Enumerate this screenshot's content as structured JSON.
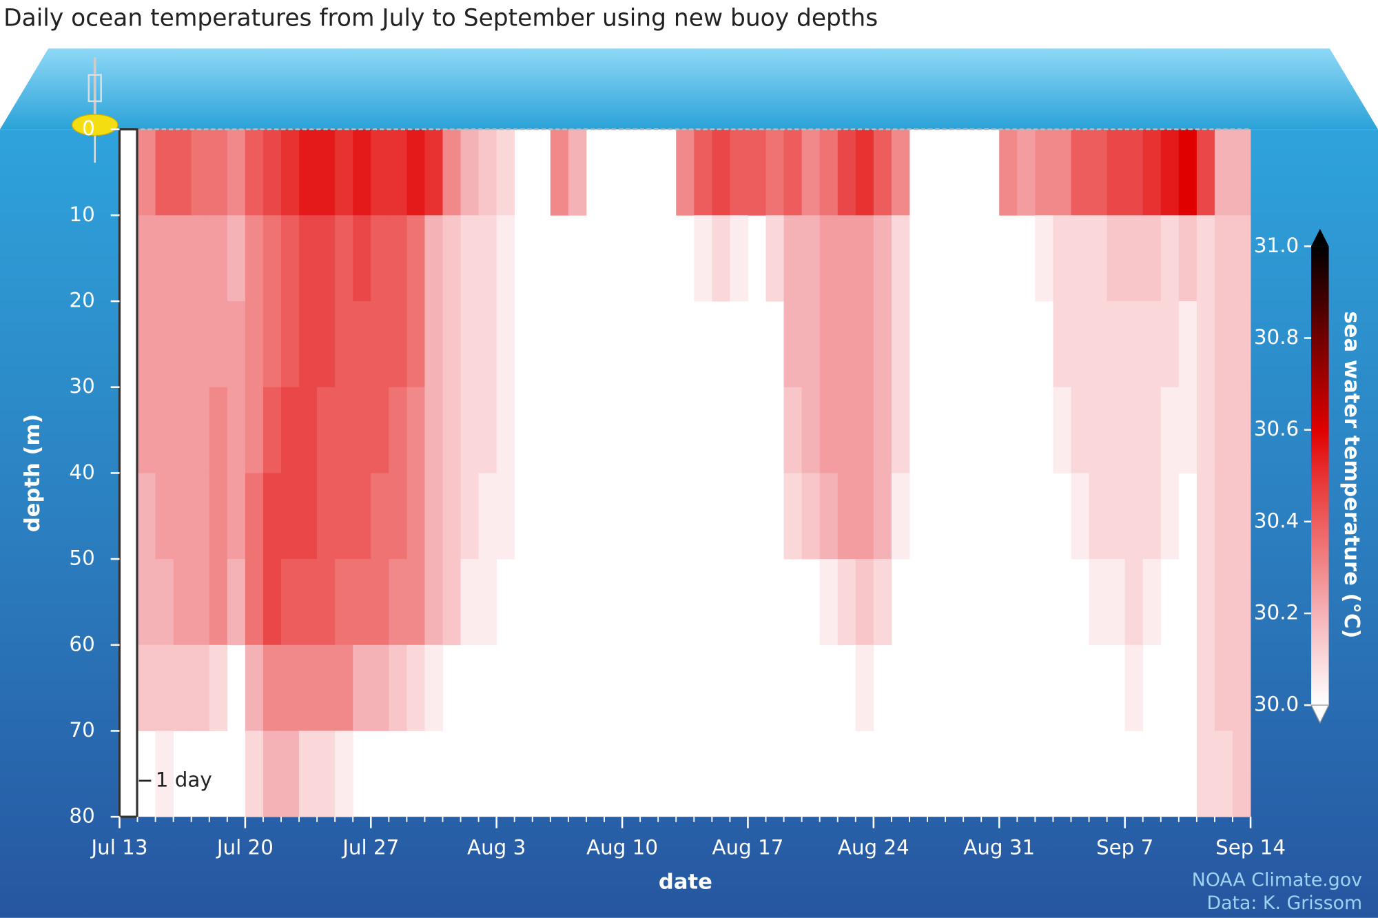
{
  "chart_data": {
    "type": "heatmap",
    "title": "Daily ocean temperatures from July to September using new buoy depths",
    "x_label": "date",
    "y_label": "depth (m)",
    "colorbar_label": "sea water temperature (°C)",
    "annotation": "1 day",
    "credits": [
      "NOAA Climate.gov",
      "Data: K. Grissom"
    ],
    "xlim": [
      0,
      63
    ],
    "xticks": [
      {
        "value": 0,
        "label": "Jul 13"
      },
      {
        "value": 7,
        "label": "Jul 20"
      },
      {
        "value": 14,
        "label": "Jul 27"
      },
      {
        "value": 21,
        "label": "Aug 3"
      },
      {
        "value": 28,
        "label": "Aug 10"
      },
      {
        "value": 35,
        "label": "Aug 17"
      },
      {
        "value": 42,
        "label": "Aug 24"
      },
      {
        "value": 49,
        "label": "Aug 31"
      },
      {
        "value": 56,
        "label": "Sep 7"
      },
      {
        "value": 63,
        "label": "Sep 14"
      }
    ],
    "ylim": [
      0,
      80
    ],
    "yticks": [
      0,
      10,
      20,
      30,
      40,
      50,
      60,
      70,
      80
    ],
    "zlim": [
      30,
      31
    ],
    "zticks": [
      {
        "value": 30,
        "label": "30.0"
      },
      {
        "value": 30.2,
        "label": "30.2"
      },
      {
        "value": 30.4,
        "label": "30.4"
      },
      {
        "value": 30.6,
        "label": "30.6"
      },
      {
        "value": 30.8,
        "label": "30.8"
      },
      {
        "value": 31,
        "label": "31.0"
      }
    ],
    "x": [
      0,
      1,
      2,
      3,
      4,
      5,
      6,
      7,
      8,
      9,
      10,
      11,
      12,
      13,
      14,
      15,
      16,
      17,
      18,
      19,
      20,
      21,
      22,
      23,
      24,
      25,
      26,
      27,
      28,
      29,
      30,
      31,
      32,
      33,
      34,
      35,
      36,
      37,
      38,
      39,
      40,
      41,
      42,
      43,
      44,
      45,
      46,
      47,
      48,
      49,
      50,
      51,
      52,
      53,
      54,
      55,
      56,
      57,
      58,
      59,
      60,
      61,
      62
    ],
    "y": [
      0,
      10,
      20,
      30,
      40,
      50,
      60,
      70
    ],
    "z": [
      [
        null,
        null,
        null,
        null,
        null,
        null,
        null,
        null
      ],
      [
        30.3,
        30.25,
        30.25,
        30.25,
        30.2,
        30.2,
        30.15,
        null
      ],
      [
        30.4,
        30.25,
        30.25,
        30.25,
        30.25,
        30.2,
        30.15,
        30.05
      ],
      [
        30.4,
        30.25,
        30.25,
        30.25,
        30.25,
        30.25,
        30.15,
        null
      ],
      [
        30.35,
        30.25,
        30.25,
        30.25,
        30.25,
        30.25,
        30.15,
        null
      ],
      [
        30.35,
        30.25,
        30.25,
        30.3,
        30.3,
        30.3,
        30.1,
        null
      ],
      [
        30.3,
        30.2,
        30.25,
        30.25,
        30.25,
        30.2,
        null,
        null
      ],
      [
        30.4,
        30.3,
        30.3,
        30.3,
        30.35,
        30.35,
        30.2,
        30.1
      ],
      [
        30.45,
        30.35,
        30.35,
        30.4,
        30.45,
        30.45,
        30.3,
        30.2
      ],
      [
        30.5,
        30.4,
        30.4,
        30.45,
        30.45,
        30.4,
        30.3,
        30.2
      ],
      [
        30.55,
        30.45,
        30.45,
        30.45,
        30.45,
        30.4,
        30.3,
        30.1
      ],
      [
        30.55,
        30.45,
        30.45,
        30.4,
        30.4,
        30.4,
        30.3,
        30.1
      ],
      [
        30.5,
        30.4,
        30.4,
        30.4,
        30.4,
        30.35,
        30.3,
        30.05
      ],
      [
        30.55,
        30.45,
        30.4,
        30.4,
        30.4,
        30.35,
        30.2,
        null
      ],
      [
        30.5,
        30.4,
        30.4,
        30.4,
        30.35,
        30.35,
        30.2,
        null
      ],
      [
        30.5,
        30.4,
        30.4,
        30.35,
        30.35,
        30.3,
        30.15,
        null
      ],
      [
        30.55,
        30.35,
        30.35,
        30.3,
        30.3,
        30.3,
        30.1,
        null
      ],
      [
        30.5,
        30.2,
        30.2,
        30.2,
        30.2,
        30.2,
        30.05,
        null
      ],
      [
        30.3,
        30.15,
        30.15,
        30.15,
        30.15,
        30.15,
        null,
        null
      ],
      [
        30.2,
        30.1,
        30.1,
        30.1,
        30.1,
        30.05,
        null,
        null
      ],
      [
        30.15,
        30.1,
        30.1,
        30.1,
        30.05,
        30.05,
        null,
        null
      ],
      [
        30.1,
        30.05,
        30.05,
        30.05,
        30.05,
        null,
        null,
        null
      ],
      [
        null,
        null,
        null,
        null,
        null,
        null,
        null,
        null
      ],
      [
        null,
        null,
        null,
        null,
        null,
        null,
        null,
        null
      ],
      [
        30.3,
        null,
        null,
        null,
        null,
        null,
        null,
        null
      ],
      [
        30.2,
        null,
        null,
        null,
        null,
        null,
        null,
        null
      ],
      [
        null,
        null,
        null,
        null,
        null,
        null,
        null,
        null
      ],
      [
        null,
        null,
        null,
        null,
        null,
        null,
        null,
        null
      ],
      [
        null,
        null,
        null,
        null,
        null,
        null,
        null,
        null
      ],
      [
        null,
        null,
        null,
        null,
        null,
        null,
        null,
        null
      ],
      [
        null,
        null,
        null,
        null,
        null,
        null,
        null,
        null
      ],
      [
        30.3,
        null,
        null,
        null,
        null,
        null,
        null,
        null
      ],
      [
        30.4,
        30.05,
        null,
        null,
        null,
        null,
        null,
        null
      ],
      [
        30.45,
        30.1,
        null,
        null,
        null,
        null,
        null,
        null
      ],
      [
        30.4,
        30.05,
        null,
        null,
        null,
        null,
        null,
        null
      ],
      [
        30.4,
        null,
        null,
        null,
        null,
        null,
        null,
        null
      ],
      [
        30.35,
        30.1,
        null,
        null,
        null,
        null,
        null,
        null
      ],
      [
        30.4,
        30.2,
        30.2,
        30.15,
        30.1,
        null,
        null,
        null
      ],
      [
        30.3,
        30.2,
        30.2,
        30.2,
        30.15,
        null,
        null,
        null
      ],
      [
        30.35,
        30.25,
        30.25,
        30.25,
        30.2,
        30.05,
        null,
        null
      ],
      [
        30.45,
        30.25,
        30.25,
        30.25,
        30.25,
        30.1,
        null,
        null
      ],
      [
        30.5,
        30.25,
        30.25,
        30.25,
        30.25,
        30.15,
        30.05,
        null
      ],
      [
        30.4,
        30.2,
        30.2,
        30.2,
        30.2,
        30.1,
        null,
        null
      ],
      [
        30.3,
        30.1,
        30.1,
        30.1,
        30.05,
        null,
        null,
        null
      ],
      [
        null,
        null,
        null,
        null,
        null,
        null,
        null,
        null
      ],
      [
        null,
        null,
        null,
        null,
        null,
        null,
        null,
        null
      ],
      [
        null,
        null,
        null,
        null,
        null,
        null,
        null,
        null
      ],
      [
        null,
        null,
        null,
        null,
        null,
        null,
        null,
        null
      ],
      [
        null,
        null,
        null,
        null,
        null,
        null,
        null,
        null
      ],
      [
        30.3,
        null,
        null,
        null,
        null,
        null,
        null,
        null
      ],
      [
        30.25,
        null,
        null,
        null,
        null,
        null,
        null,
        null
      ],
      [
        30.3,
        30.05,
        null,
        null,
        null,
        null,
        null,
        null
      ],
      [
        30.3,
        30.1,
        30.1,
        30.05,
        null,
        null,
        null,
        null
      ],
      [
        30.4,
        30.1,
        30.1,
        30.1,
        30.05,
        null,
        null,
        null
      ],
      [
        30.4,
        30.1,
        30.1,
        30.1,
        30.1,
        30.05,
        null,
        null
      ],
      [
        30.45,
        30.15,
        30.1,
        30.1,
        30.1,
        30.05,
        null,
        null
      ],
      [
        30.45,
        30.15,
        30.1,
        30.1,
        30.1,
        30.1,
        30.05,
        null
      ],
      [
        30.5,
        30.15,
        30.1,
        30.1,
        30.1,
        30.05,
        null,
        null
      ],
      [
        30.55,
        30.1,
        30.1,
        30.05,
        30.05,
        null,
        null,
        null
      ],
      [
        30.6,
        30.15,
        30.05,
        30.05,
        null,
        null,
        null,
        null
      ],
      [
        30.45,
        30.1,
        30.1,
        30.1,
        30.1,
        30.1,
        30.1,
        30.1
      ],
      [
        30.2,
        30.15,
        30.15,
        30.15,
        30.15,
        30.15,
        30.15,
        30.1
      ],
      [
        30.2,
        30.15,
        30.15,
        30.15,
        30.15,
        30.15,
        30.15,
        30.15
      ]
    ]
  }
}
